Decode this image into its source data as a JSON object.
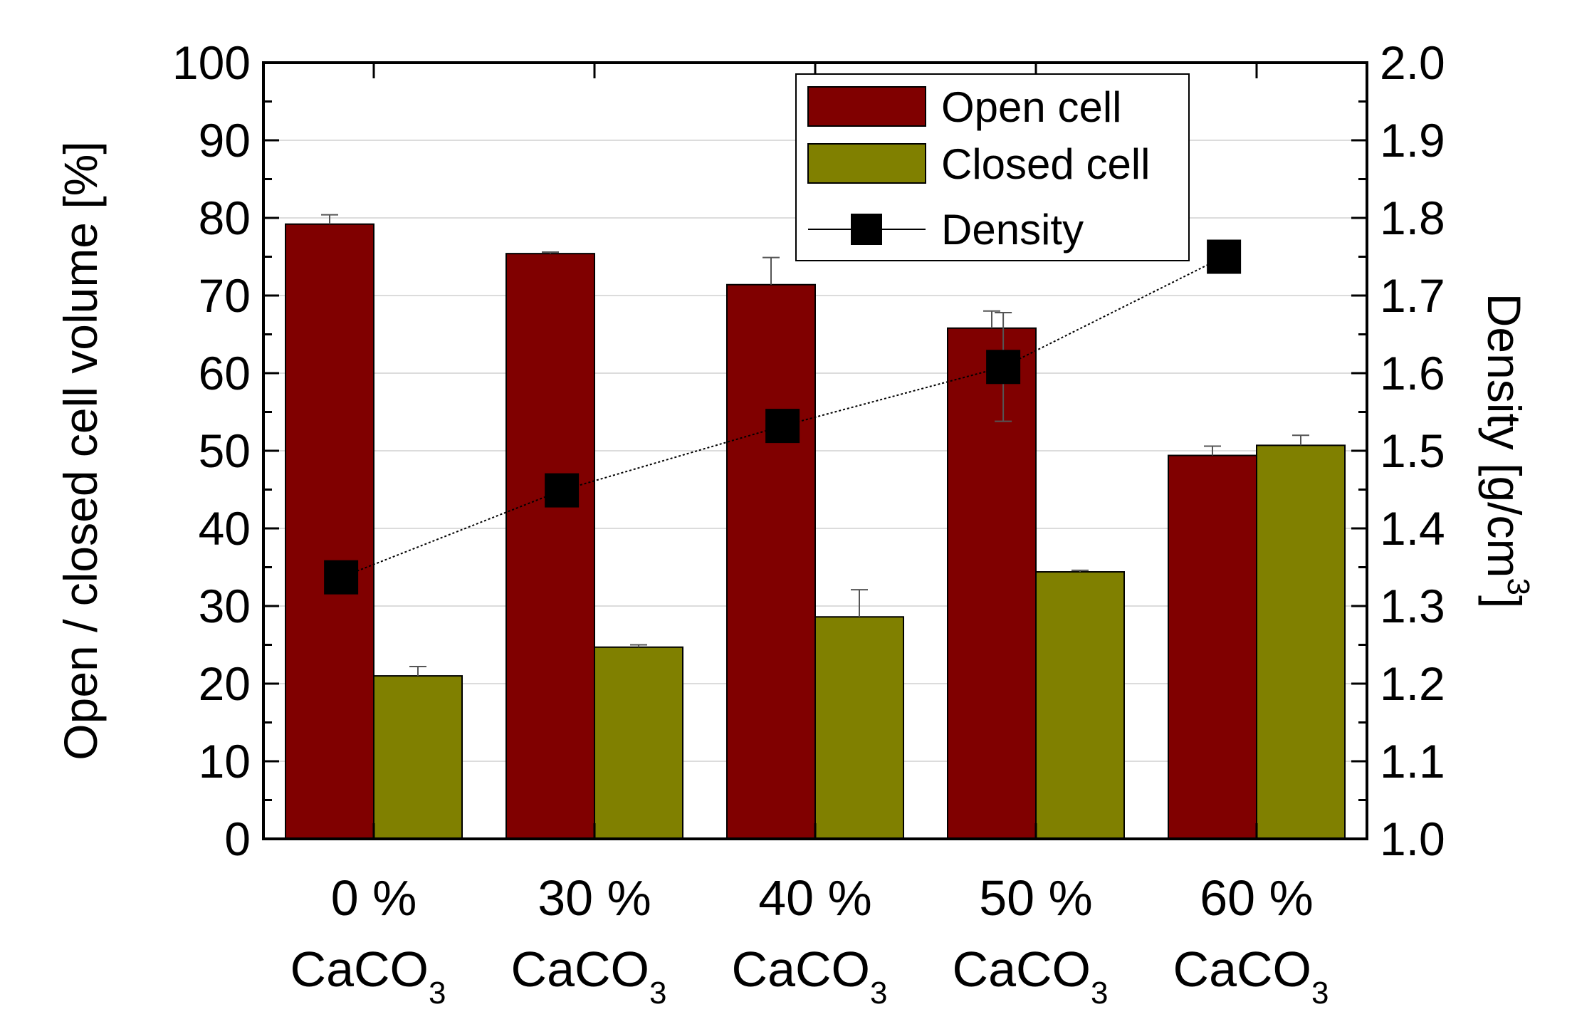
{
  "chart_data": {
    "type": "bar",
    "categories": [
      {
        "line1": "0 %",
        "line2": "CaCO",
        "sub": "3"
      },
      {
        "line1": "30 %",
        "line2": "CaCO",
        "sub": "3"
      },
      {
        "line1": "40 %",
        "line2": "CaCO",
        "sub": "3"
      },
      {
        "line1": "50 %",
        "line2": "CaCO",
        "sub": "3"
      },
      {
        "line1": "60 %",
        "line2": "CaCO",
        "sub": "3"
      }
    ],
    "series": [
      {
        "name": "Open cell",
        "color": "#800000",
        "values": [
          79.2,
          75.4,
          71.4,
          65.8,
          49.4
        ],
        "errors": [
          1.2,
          0.2,
          3.5,
          2.2,
          1.2
        ]
      },
      {
        "name": "Closed cell",
        "color": "#808000",
        "values": [
          21.0,
          24.7,
          28.6,
          34.4,
          50.7
        ],
        "errors": [
          1.2,
          0.3,
          3.5,
          0.2,
          1.3
        ]
      }
    ],
    "density": {
      "name": "Density",
      "color": "#000000",
      "values": [
        1.337,
        1.449,
        1.532,
        1.608,
        1.75
      ],
      "errors": [
        0.0,
        0.0,
        0.0,
        0.07,
        0.0
      ]
    },
    "left_axis": {
      "label": "Open / closed cell volume [%]",
      "ylim": [
        0,
        100
      ],
      "ticks": [
        "0",
        "10",
        "20",
        "30",
        "40",
        "50",
        "60",
        "70",
        "80",
        "90",
        "100"
      ]
    },
    "right_axis": {
      "label_main": "Density [g/cm",
      "label_sup": "3",
      "label_end": "]",
      "ylim": [
        1.0,
        2.0
      ],
      "ticks": [
        "1.0",
        "1.1",
        "1.2",
        "1.3",
        "1.4",
        "1.5",
        "1.6",
        "1.7",
        "1.8",
        "1.9",
        "2.0"
      ]
    },
    "legend": {
      "position": "top-right",
      "entries": [
        "Open cell",
        "Closed cell",
        "Density"
      ]
    },
    "grid": true
  }
}
